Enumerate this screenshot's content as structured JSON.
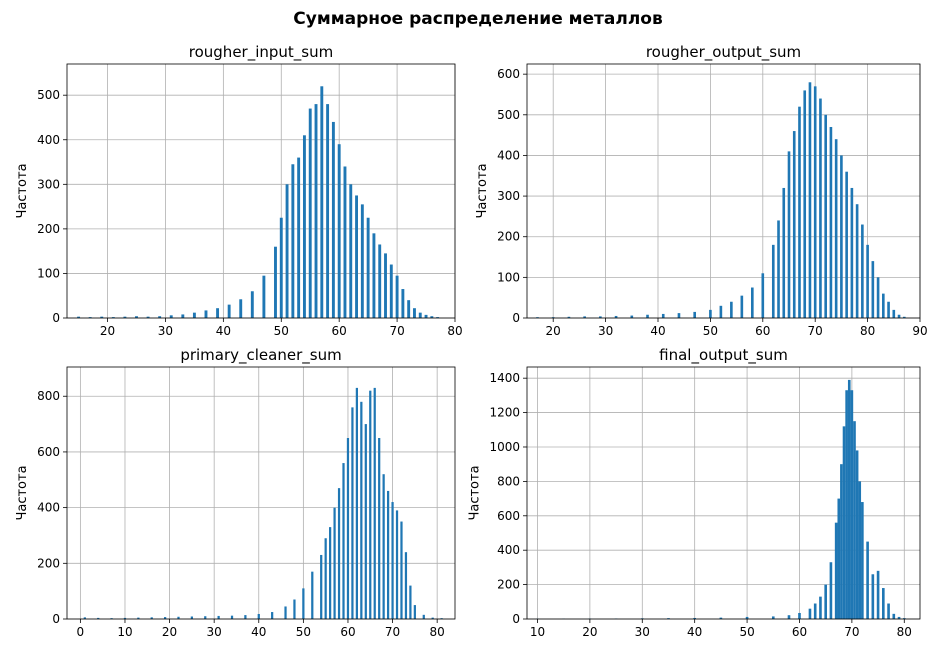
{
  "figure": {
    "suptitle": "Суммарное распределение металлов"
  },
  "chart_data": [
    {
      "type": "bar",
      "title": "rougher_input_sum",
      "xlabel": "",
      "ylabel": "Частота",
      "xlim": [
        13,
        80
      ],
      "ylim": [
        0,
        570
      ],
      "xticks": [
        20,
        30,
        40,
        50,
        60,
        70,
        80
      ],
      "yticks": [
        0,
        100,
        200,
        300,
        400,
        500
      ],
      "grid": true,
      "bin_width": 0.5,
      "x": [
        15.0,
        17.0,
        19.0,
        21.0,
        23.0,
        25.0,
        27.0,
        29.0,
        31.0,
        33.0,
        35.0,
        37.0,
        39.0,
        41.0,
        43.0,
        45.0,
        47.0,
        49.0,
        50.0,
        51.0,
        52.0,
        53.0,
        54.0,
        55.0,
        56.0,
        57.0,
        58.0,
        59.0,
        60.0,
        61.0,
        62.0,
        63.0,
        64.0,
        65.0,
        66.0,
        67.0,
        68.0,
        69.0,
        70.0,
        71.0,
        72.0,
        73.0,
        74.0,
        75.0,
        76.0,
        77.0
      ],
      "y": [
        3,
        2,
        3,
        2,
        3,
        4,
        3,
        4,
        6,
        8,
        12,
        17,
        22,
        30,
        42,
        60,
        95,
        160,
        225,
        300,
        345,
        360,
        410,
        470,
        480,
        520,
        480,
        440,
        390,
        340,
        300,
        275,
        255,
        225,
        190,
        165,
        145,
        120,
        95,
        65,
        40,
        22,
        12,
        7,
        4,
        2
      ]
    },
    {
      "type": "bar",
      "title": "rougher_output_sum",
      "xlabel": "",
      "ylabel": "Частота",
      "xlim": [
        15,
        90
      ],
      "ylim": [
        0,
        625
      ],
      "xticks": [
        20,
        30,
        40,
        50,
        60,
        70,
        80,
        90
      ],
      "yticks": [
        0,
        100,
        200,
        300,
        400,
        500,
        600
      ],
      "grid": true,
      "bin_width": 0.5,
      "x": [
        17.0,
        20.0,
        23.0,
        26.0,
        29.0,
        32.0,
        35.0,
        38.0,
        41.0,
        44.0,
        47.0,
        50.0,
        52.0,
        54.0,
        56.0,
        58.0,
        60.0,
        62.0,
        63.0,
        64.0,
        65.0,
        66.0,
        67.0,
        68.0,
        69.0,
        70.0,
        71.0,
        72.0,
        73.0,
        74.0,
        75.0,
        76.0,
        77.0,
        78.0,
        79.0,
        80.0,
        81.0,
        82.0,
        83.0,
        84.0,
        85.0,
        86.0,
        87.0
      ],
      "y": [
        2,
        2,
        3,
        4,
        4,
        5,
        6,
        8,
        10,
        12,
        15,
        20,
        30,
        40,
        55,
        75,
        110,
        180,
        240,
        320,
        410,
        460,
        520,
        560,
        580,
        570,
        540,
        500,
        470,
        440,
        400,
        360,
        320,
        280,
        230,
        180,
        140,
        100,
        60,
        40,
        20,
        8,
        3
      ]
    },
    {
      "type": "bar",
      "title": "primary_cleaner_sum",
      "xlabel": "",
      "ylabel": "Частота",
      "xlim": [
        -3,
        84
      ],
      "ylim": [
        0,
        905
      ],
      "xticks": [
        0,
        10,
        20,
        30,
        40,
        50,
        60,
        70,
        80
      ],
      "yticks": [
        0,
        200,
        400,
        600,
        800
      ],
      "grid": true,
      "bin_width": 0.5,
      "x": [
        1.0,
        4.0,
        7.0,
        10.0,
        13.0,
        16.0,
        19.0,
        22.0,
        25.0,
        28.0,
        31.0,
        34.0,
        37.0,
        40.0,
        43.0,
        46.0,
        48.0,
        50.0,
        52.0,
        54.0,
        55.0,
        56.0,
        57.0,
        58.0,
        59.0,
        60.0,
        61.0,
        62.0,
        63.0,
        64.0,
        65.0,
        66.0,
        67.0,
        68.0,
        69.0,
        70.0,
        71.0,
        72.0,
        73.0,
        74.0,
        75.0,
        77.0,
        79.0,
        81.0
      ],
      "y": [
        6,
        4,
        3,
        4,
        5,
        6,
        7,
        8,
        9,
        10,
        11,
        12,
        14,
        18,
        25,
        45,
        70,
        110,
        170,
        230,
        290,
        330,
        400,
        470,
        560,
        650,
        760,
        830,
        780,
        700,
        820,
        830,
        650,
        520,
        460,
        420,
        390,
        350,
        240,
        120,
        50,
        15,
        5,
        3
      ]
    },
    {
      "type": "bar",
      "title": "final_output_sum",
      "xlabel": "",
      "ylabel": "Частота",
      "xlim": [
        8,
        83
      ],
      "ylim": [
        0,
        1465
      ],
      "xticks": [
        10,
        20,
        30,
        40,
        50,
        60,
        70,
        80
      ],
      "yticks": [
        0,
        200,
        400,
        600,
        800,
        1000,
        1200,
        1400
      ],
      "grid": true,
      "bin_width": 0.5,
      "x": [
        10.0,
        15.0,
        20.0,
        25.0,
        30.0,
        35.0,
        40.0,
        45.0,
        50.0,
        55.0,
        58.0,
        60.0,
        62.0,
        63.0,
        64.0,
        65.0,
        66.0,
        67.0,
        67.5,
        68.0,
        68.5,
        69.0,
        69.5,
        70.0,
        70.5,
        71.0,
        71.5,
        72.0,
        73.0,
        74.0,
        75.0,
        76.0,
        77.0,
        78.0,
        79.0,
        80.0
      ],
      "y": [
        2,
        2,
        3,
        3,
        4,
        5,
        6,
        8,
        12,
        15,
        22,
        35,
        60,
        90,
        130,
        200,
        330,
        560,
        700,
        900,
        1120,
        1330,
        1390,
        1330,
        1150,
        980,
        800,
        680,
        450,
        260,
        280,
        180,
        90,
        30,
        12,
        5
      ]
    }
  ]
}
